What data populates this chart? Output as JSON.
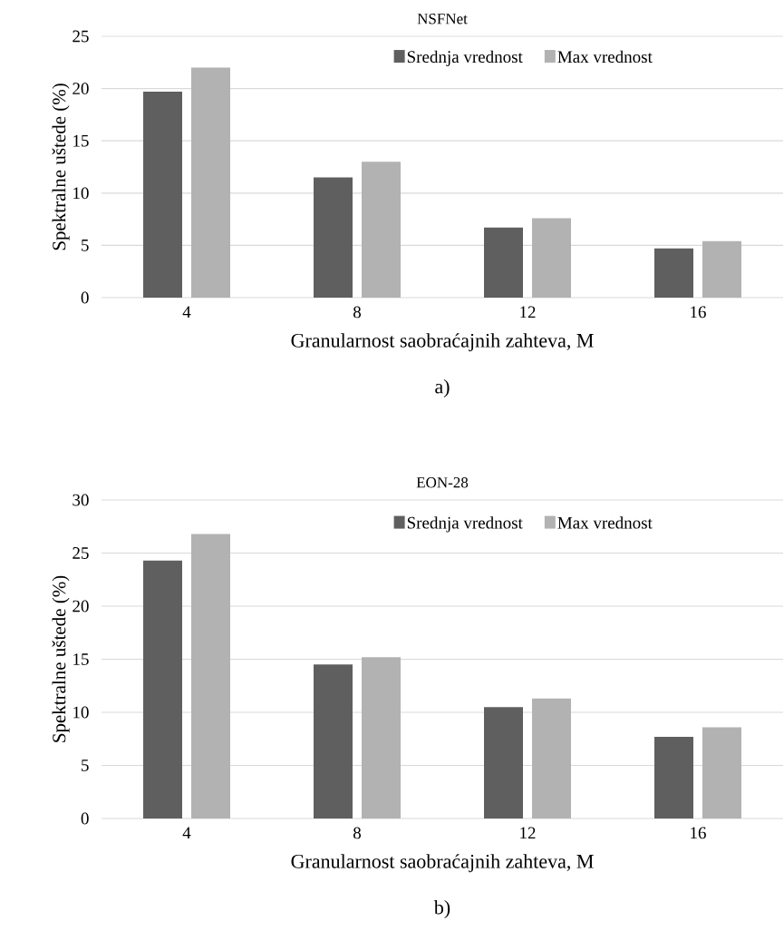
{
  "chart_data": [
    {
      "type": "bar",
      "title": "NSFNet",
      "xlabel": "Granularnost saobraćajnih zahteva, M",
      "ylabel": "Spektralne uštede (%)",
      "categories": [
        "4",
        "8",
        "12",
        "16"
      ],
      "series": [
        {
          "name": "Srednja vrednost",
          "color": "#5f5f5f",
          "values": [
            19.7,
            11.5,
            6.7,
            4.7
          ]
        },
        {
          "name": "Max vrednost",
          "color": "#b2b2b2",
          "values": [
            22.0,
            13.0,
            7.6,
            5.4
          ]
        }
      ],
      "ylim": [
        0,
        25
      ],
      "yticks": [
        0,
        5,
        10,
        15,
        20,
        25
      ],
      "grid": "y",
      "legend": "top right",
      "annotations": [
        "a)"
      ]
    },
    {
      "type": "bar",
      "title": "EON-28",
      "xlabel": "Granularnost saobraćajnih zahteva, M",
      "ylabel": "Spektralne uštede (%)",
      "categories": [
        "4",
        "8",
        "12",
        "16"
      ],
      "series": [
        {
          "name": "Srednja vrednost",
          "color": "#5f5f5f",
          "values": [
            24.3,
            14.5,
            10.5,
            7.7
          ]
        },
        {
          "name": "Max vrednost",
          "color": "#b2b2b2",
          "values": [
            26.8,
            15.2,
            11.3,
            8.6
          ]
        }
      ],
      "ylim": [
        0,
        30
      ],
      "yticks": [
        0,
        5,
        10,
        15,
        20,
        25,
        30
      ],
      "grid": "y",
      "legend": "top right",
      "annotations": [
        "b)"
      ]
    }
  ]
}
